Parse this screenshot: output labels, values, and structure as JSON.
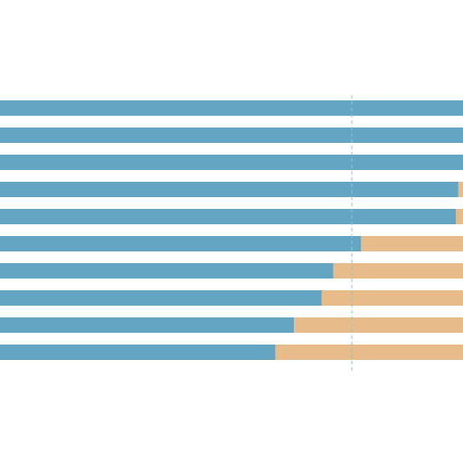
{
  "chart_data": {
    "type": "stacked_bar_horizontal",
    "categories": [
      null,
      null,
      null,
      null,
      null,
      null,
      null,
      null,
      null,
      null
    ],
    "series": [
      {
        "color": "#63a5c3",
        "values": [
          100,
          100,
          100,
          99,
          98.5,
          78,
          72,
          69.5,
          63.5,
          59.5
        ]
      },
      {
        "color": "#e8bc8a",
        "values": [
          0,
          0,
          0,
          1,
          1.5,
          22,
          28,
          30.5,
          36.5,
          40.5
        ]
      }
    ],
    "xlim": [
      0,
      100
    ],
    "reference_line": 76,
    "reference_line_color": "#8cc4dc"
  }
}
